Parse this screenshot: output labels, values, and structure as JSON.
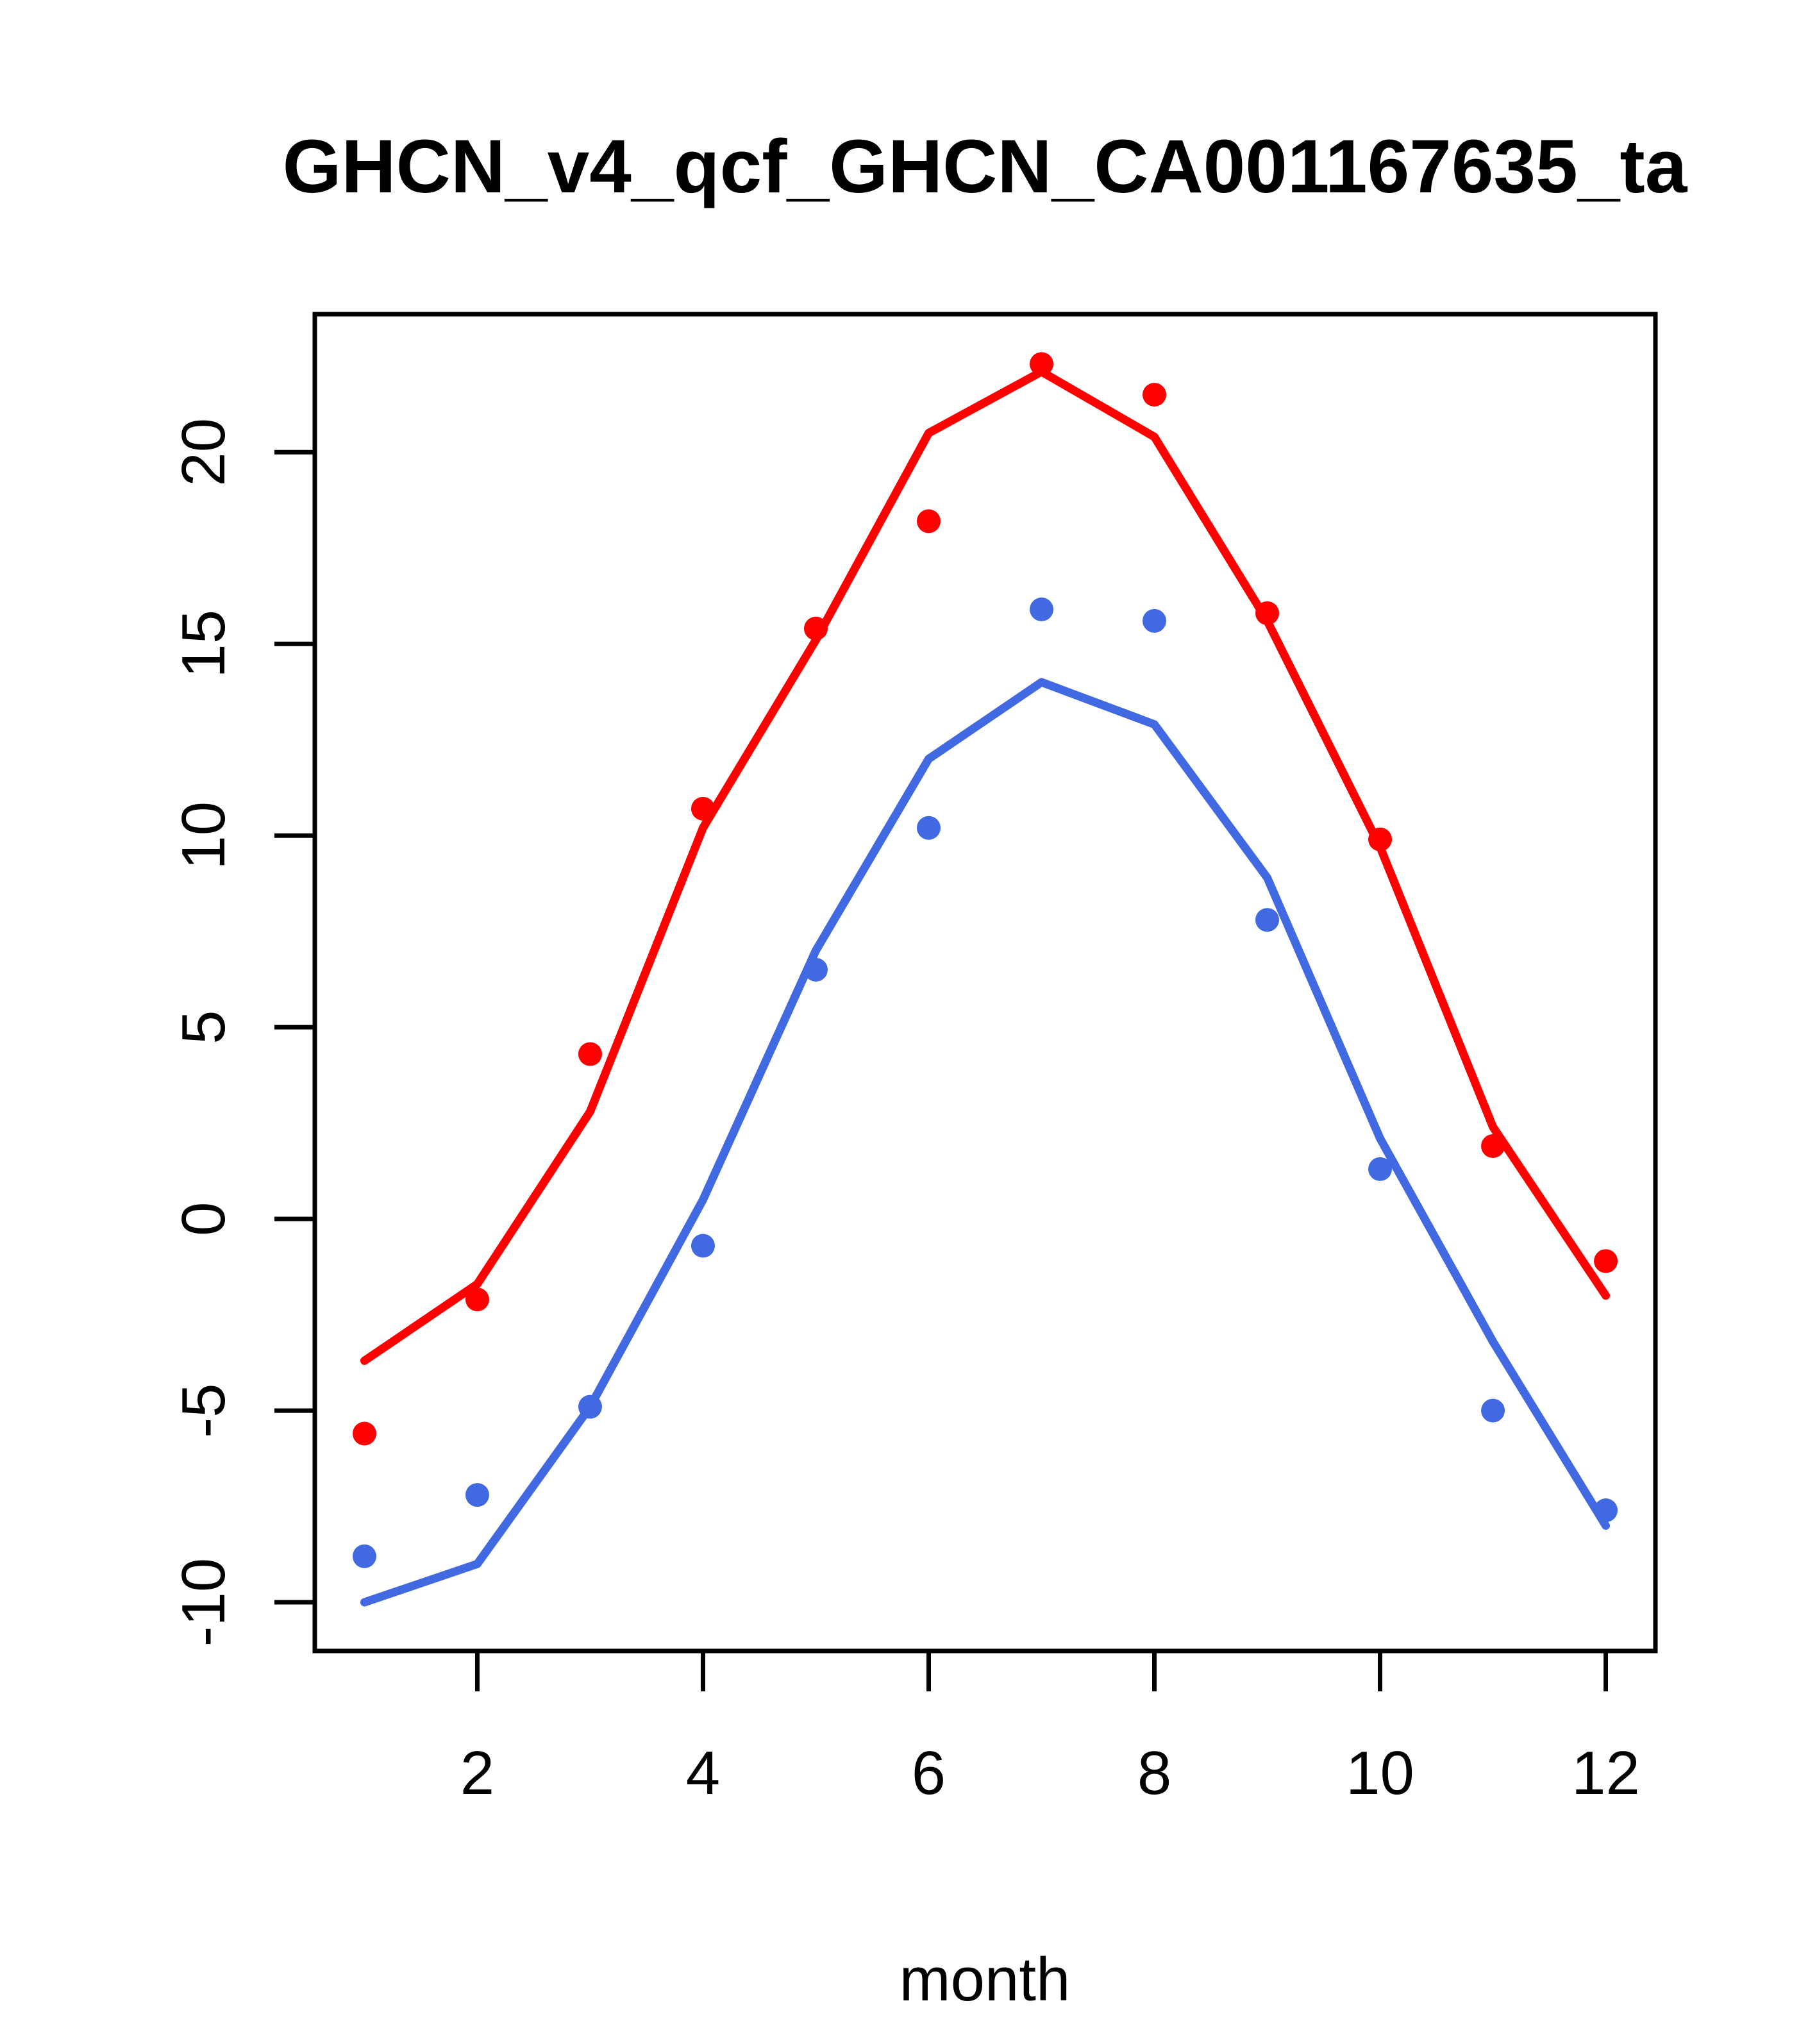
{
  "chart_data": {
    "type": "line",
    "title": "GHCN_v4_qcf_GHCN_CA001167635_ta",
    "xlabel": "month",
    "ylabel": "",
    "x": [
      1,
      2,
      3,
      4,
      5,
      6,
      7,
      8,
      9,
      10,
      11,
      12
    ],
    "x_ticks": [
      2,
      4,
      6,
      8,
      10,
      12
    ],
    "y_ticks": [
      20,
      15,
      10,
      5,
      0,
      -5,
      -10
    ],
    "xlim": [
      0.56,
      12.44
    ],
    "ylim": [
      -11.27,
      23.6
    ],
    "grid": false,
    "legend_position": "none",
    "colors": {
      "red_series": "#ff0000",
      "blue_series": "#4169e1",
      "axis": "#000000",
      "background": "#ffffff"
    },
    "series": [
      {
        "name": "red-line",
        "kind": "line",
        "color": "#ff0000",
        "values": [
          -3.7,
          -1.7,
          2.8,
          10.2,
          15.1,
          20.5,
          22.1,
          20.4,
          15.6,
          9.7,
          2.4,
          -2.0
        ]
      },
      {
        "name": "red-points",
        "kind": "points",
        "color": "#ff0000",
        "values": [
          -5.6,
          -2.1,
          4.3,
          10.7,
          15.4,
          18.2,
          22.3,
          21.5,
          15.8,
          9.9,
          1.9,
          -1.1
        ]
      },
      {
        "name": "blue-line",
        "kind": "line",
        "color": "#4169e1",
        "values": [
          -10.0,
          -9.0,
          -4.9,
          0.5,
          7.0,
          12.0,
          14.0,
          12.9,
          8.9,
          2.1,
          -3.2,
          -8.0
        ]
      },
      {
        "name": "blue-points",
        "kind": "points",
        "color": "#4169e1",
        "values": [
          -8.8,
          -7.2,
          -4.9,
          -0.7,
          6.5,
          10.2,
          15.9,
          15.6,
          7.8,
          1.3,
          -5.0,
          -7.6
        ]
      }
    ]
  }
}
